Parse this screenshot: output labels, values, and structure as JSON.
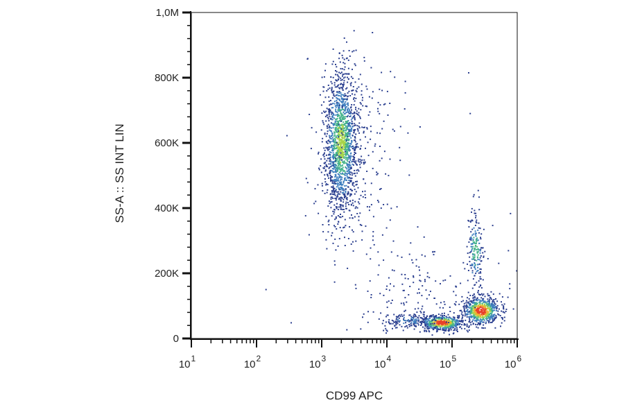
{
  "chart_data": {
    "type": "scatter",
    "title": "",
    "xlabel": "CD99 APC",
    "ylabel": "SS-A :: SS INT LIN",
    "xscale": "log",
    "xlim": [
      10,
      1000000
    ],
    "ylim": [
      0,
      1000000
    ],
    "grid": false,
    "legend": "none",
    "x_ticks": [
      {
        "value": 10,
        "base": "10",
        "exp": "1"
      },
      {
        "value": 100,
        "base": "10",
        "exp": "2"
      },
      {
        "value": 1000,
        "base": "10",
        "exp": "3"
      },
      {
        "value": 10000,
        "base": "10",
        "exp": "4"
      },
      {
        "value": 100000,
        "base": "10",
        "exp": "5"
      },
      {
        "value": 1000000,
        "base": "10",
        "exp": "6"
      }
    ],
    "y_ticks": [
      {
        "value": 0,
        "label": "0"
      },
      {
        "value": 200000,
        "label": "200K"
      },
      {
        "value": 400000,
        "label": "400K"
      },
      {
        "value": 600000,
        "label": "600K"
      },
      {
        "value": 800000,
        "label": "800K"
      },
      {
        "value": 1000000,
        "label": "1,0M"
      }
    ],
    "density_colors": [
      "#2b3f8f",
      "#3f7fbf",
      "#45b38a",
      "#a8d44a",
      "#f0b030",
      "#e8402a"
    ],
    "populations": [
      {
        "x_center": 2000,
        "x_log_sd": 0.13,
        "y_center": 600000,
        "y_sd": 110000,
        "count": 1500,
        "peak": 0.55
      },
      {
        "x_center": 3500,
        "x_log_sd": 0.35,
        "y_center": 540000,
        "y_sd": 170000,
        "count": 260,
        "peak": 0.0
      },
      {
        "x_center": 230000,
        "x_log_sd": 0.06,
        "y_center": 270000,
        "y_sd": 60000,
        "count": 180,
        "peak": 0.45
      },
      {
        "x_center": 70000,
        "x_log_sd": 0.17,
        "y_center": 48000,
        "y_sd": 12000,
        "count": 520,
        "peak": 1.0
      },
      {
        "x_center": 280000,
        "x_log_sd": 0.14,
        "y_center": 85000,
        "y_sd": 22000,
        "count": 620,
        "peak": 1.0
      },
      {
        "x_center": 22000,
        "x_log_sd": 0.22,
        "y_center": 55000,
        "y_sd": 12000,
        "count": 140,
        "peak": 0.2
      },
      {
        "x_center": 40000,
        "x_log_sd": 0.55,
        "y_center": 140000,
        "y_sd": 90000,
        "count": 190,
        "peak": 0.0
      }
    ],
    "outliers": [
      {
        "x": 140,
        "y": 150000
      },
      {
        "x": 340,
        "y": 48000
      },
      {
        "x": 180000,
        "y": 815000
      },
      {
        "x": 190000,
        "y": 690000
      },
      {
        "x": 300000,
        "y": 180000
      }
    ]
  }
}
